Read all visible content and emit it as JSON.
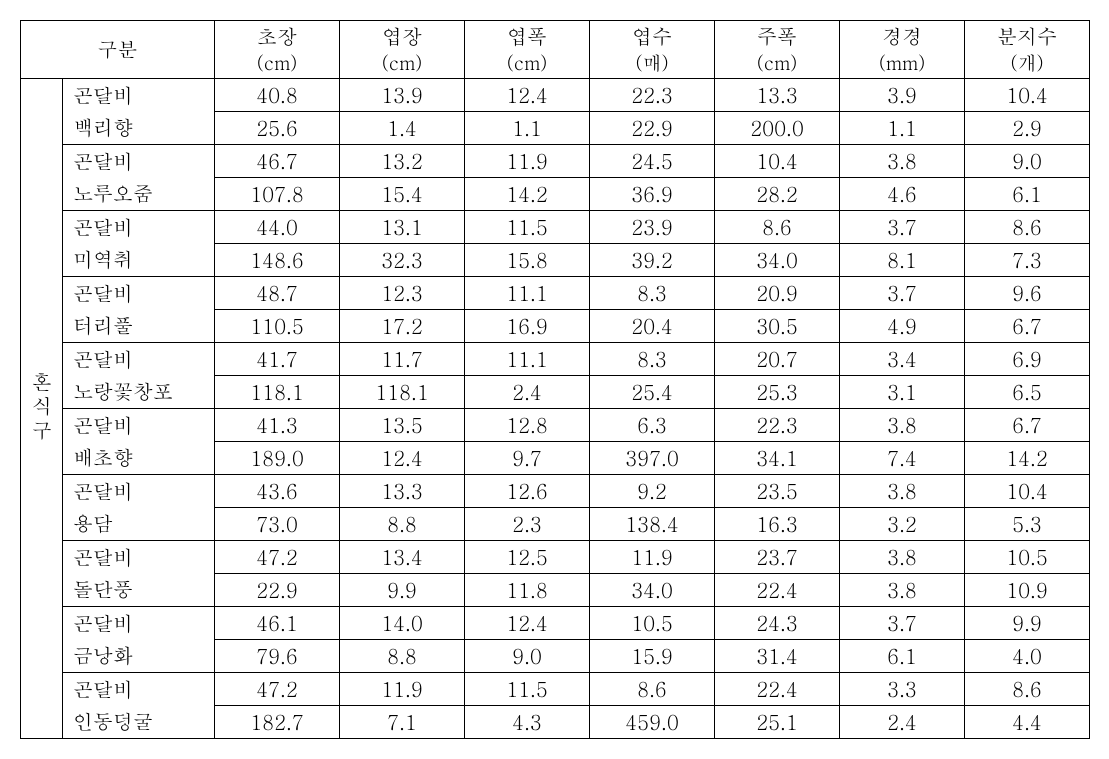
{
  "header": {
    "group_label": "구분",
    "columns": [
      {
        "name": "초장",
        "unit": "(cm)"
      },
      {
        "name": "엽장",
        "unit": "(cm)"
      },
      {
        "name": "엽폭",
        "unit": "(cm)"
      },
      {
        "name": "엽수",
        "unit": "(매)"
      },
      {
        "name": "주폭",
        "unit": "(cm)"
      },
      {
        "name": "경경",
        "unit": "(mm)"
      },
      {
        "name": "분지수",
        "unit": "(개)"
      }
    ]
  },
  "section_label": "혼식구",
  "pairs": [
    {
      "a": {
        "plant": "곤달비",
        "values": [
          "40.8",
          "13.9",
          "12.4",
          "22.3",
          "13.3",
          "3.9",
          "10.4"
        ]
      },
      "b": {
        "plant": "백리향",
        "values": [
          "25.6",
          "1.4",
          "1.1",
          "22.9",
          "200.0",
          "1.1",
          "2.9"
        ]
      }
    },
    {
      "a": {
        "plant": "곤달비",
        "values": [
          "46.7",
          "13.2",
          "11.9",
          "24.5",
          "10.4",
          "3.8",
          "9.0"
        ]
      },
      "b": {
        "plant": "노루오줌",
        "values": [
          "107.8",
          "15.4",
          "14.2",
          "36.9",
          "28.2",
          "4.6",
          "6.1"
        ]
      }
    },
    {
      "a": {
        "plant": "곤달비",
        "values": [
          "44.0",
          "13.1",
          "11.5",
          "23.9",
          "8.6",
          "3.7",
          "8.6"
        ]
      },
      "b": {
        "plant": "미역취",
        "values": [
          "148.6",
          "32.3",
          "15.8",
          "39.2",
          "34.0",
          "8.1",
          "7.3"
        ]
      }
    },
    {
      "a": {
        "plant": "곤달비",
        "values": [
          "48.7",
          "12.3",
          "11.1",
          "8.3",
          "20.9",
          "3.7",
          "9.6"
        ]
      },
      "b": {
        "plant": "터리풀",
        "values": [
          "110.5",
          "17.2",
          "16.9",
          "20.4",
          "30.5",
          "4.9",
          "6.7"
        ]
      }
    },
    {
      "a": {
        "plant": "곤달비",
        "values": [
          "41.7",
          "11.7",
          "11.1",
          "8.3",
          "20.7",
          "3.4",
          "6.9"
        ]
      },
      "b": {
        "plant": "노랑꽃창포",
        "values": [
          "118.1",
          "118.1",
          "2.4",
          "25.4",
          "25.3",
          "3.1",
          "6.5"
        ]
      }
    },
    {
      "a": {
        "plant": "곤달비",
        "values": [
          "41.3",
          "13.5",
          "12.8",
          "6.3",
          "22.3",
          "3.8",
          "6.7"
        ]
      },
      "b": {
        "plant": "배초향",
        "values": [
          "189.0",
          "12.4",
          "9.7",
          "397.0",
          "34.1",
          "7.4",
          "14.2"
        ]
      }
    },
    {
      "a": {
        "plant": "곤달비",
        "values": [
          "43.6",
          "13.3",
          "12.6",
          "9.2",
          "23.5",
          "3.8",
          "10.4"
        ]
      },
      "b": {
        "plant": "용담",
        "values": [
          "73.0",
          "8.8",
          "2.3",
          "138.4",
          "16.3",
          "3.2",
          "5.3"
        ]
      }
    },
    {
      "a": {
        "plant": "곤달비",
        "values": [
          "47.2",
          "13.4",
          "12.5",
          "11.9",
          "23.7",
          "3.8",
          "10.5"
        ]
      },
      "b": {
        "plant": "돌단풍",
        "values": [
          "22.9",
          "9.9",
          "11.8",
          "34.0",
          "22.4",
          "3.8",
          "10.9"
        ]
      }
    },
    {
      "a": {
        "plant": "곤달비",
        "values": [
          "46.1",
          "14.0",
          "12.4",
          "10.5",
          "24.3",
          "3.7",
          "9.9"
        ]
      },
      "b": {
        "plant": "금낭화",
        "values": [
          "79.6",
          "8.8",
          "9.0",
          "15.9",
          "31.4",
          "6.1",
          "4.0"
        ]
      }
    },
    {
      "a": {
        "plant": "곤달비",
        "values": [
          "47.2",
          "11.9",
          "11.5",
          "8.6",
          "22.4",
          "3.3",
          "8.6"
        ]
      },
      "b": {
        "plant": "인동덩굴",
        "values": [
          "182.7",
          "7.1",
          "4.3",
          "459.0",
          "25.1",
          "2.4",
          "4.4"
        ]
      }
    }
  ]
}
